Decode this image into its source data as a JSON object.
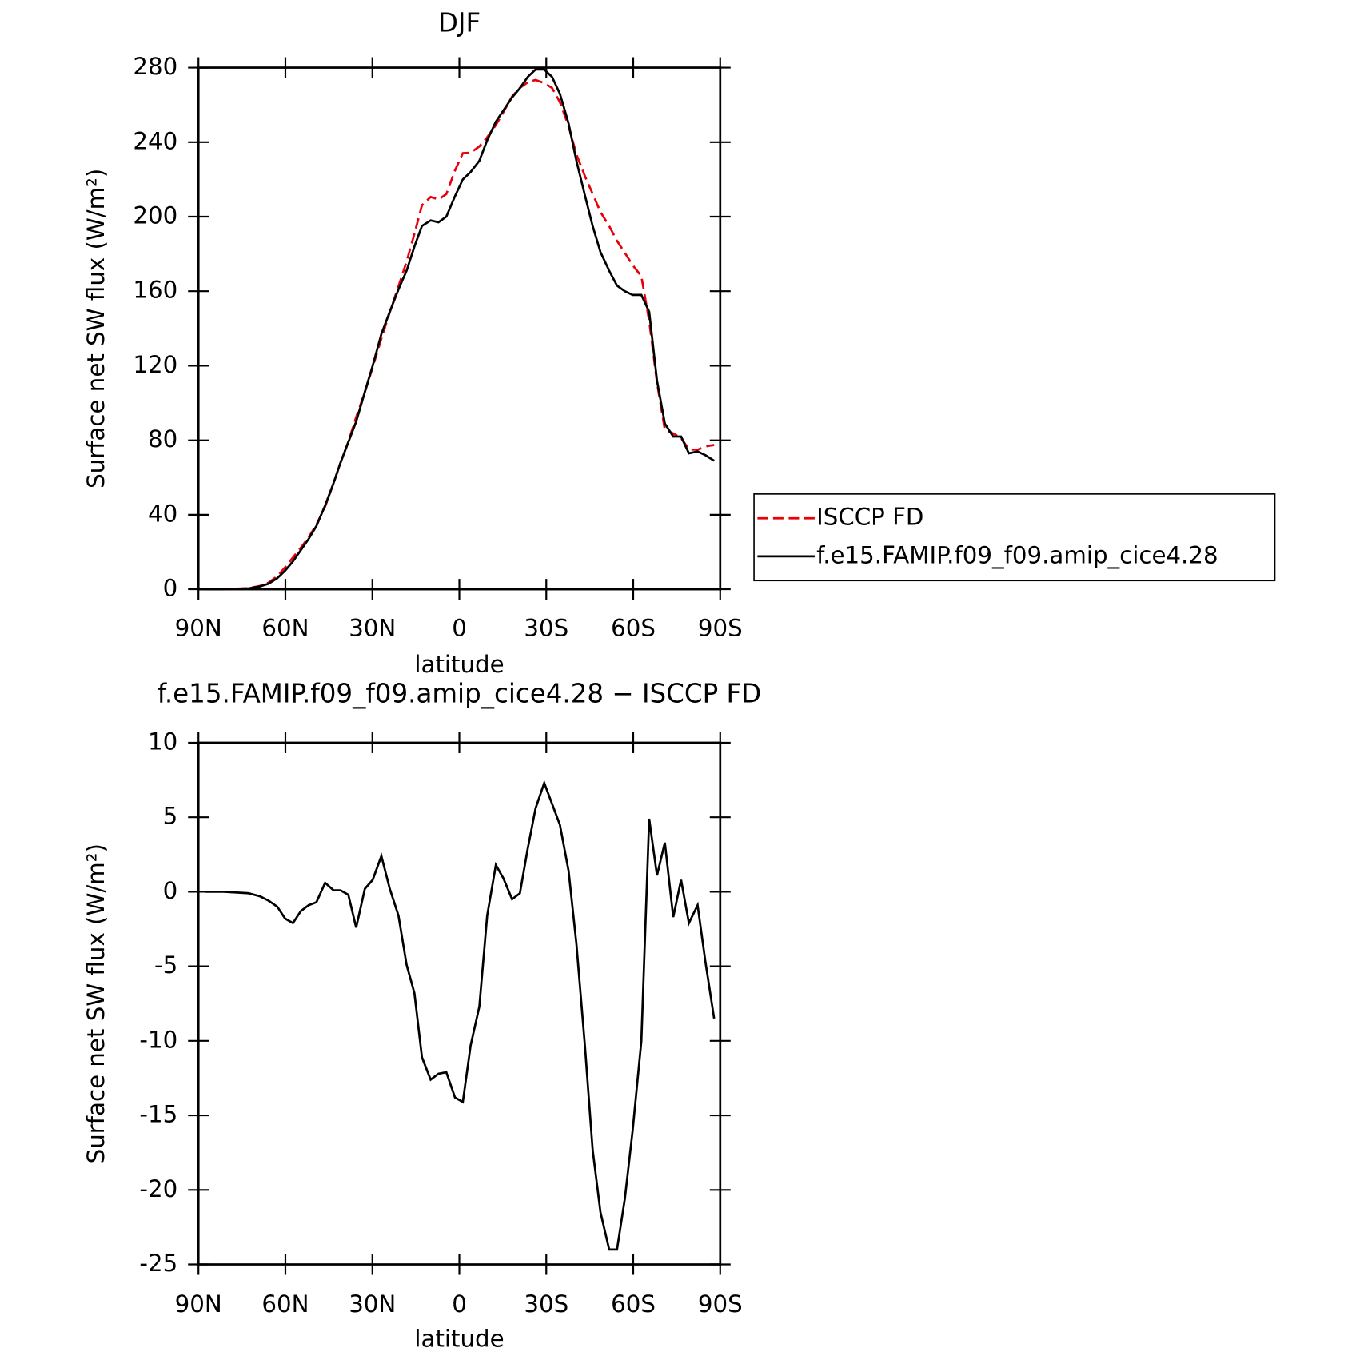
{
  "chart_data": [
    {
      "type": "line",
      "title": "DJF",
      "xlabel": "latitude",
      "ylabel": "Surface net SW flux (W/m²)",
      "xlim": [
        90,
        -90
      ],
      "xticks": [
        {
          "value": 90,
          "label": "90N"
        },
        {
          "value": 60,
          "label": "60N"
        },
        {
          "value": 30,
          "label": "30N"
        },
        0,
        {
          "value": -30,
          "label": "30S"
        },
        {
          "value": -60,
          "label": "60S"
        },
        {
          "value": -90,
          "label": "90S"
        }
      ],
      "ylim": [
        0,
        280
      ],
      "yticks": [
        0,
        40,
        80,
        120,
        160,
        200,
        240,
        280
      ],
      "legend": "right",
      "x": [
        87.6,
        81.3,
        72.7,
        68.8,
        65.8,
        62.8,
        60.1,
        57.4,
        54.7,
        52,
        49.3,
        46.3,
        43.4,
        41,
        38.3,
        35.6,
        32.6,
        29.9,
        26.9,
        24,
        21,
        18.2,
        15.5,
        12.9,
        9.9,
        7.2,
        4.5,
        1.5,
        -1.2,
        -3.9,
        -6.9,
        -9.6,
        -12.6,
        -15.2,
        -18.2,
        -20.9,
        -23.6,
        -26.3,
        -29.3,
        -32,
        -34.7,
        -37.7,
        -40.4,
        -43.4,
        -46,
        -48.7,
        -51.7,
        -54.4,
        -57.1,
        -59.8,
        -62.8,
        -65.5,
        -68.2,
        -70.9,
        -73.8,
        -76.5,
        -79.2,
        -82.2,
        -84.9,
        -87.9
      ],
      "series": [
        {
          "name": "ISCCP FD",
          "color": "#e8000b",
          "line_style": "dashed",
          "values": [
            0,
            0,
            0.6,
            1.8,
            3.6,
            7,
            11.8,
            17.1,
            22.3,
            27.9,
            34.7,
            44.4,
            56.9,
            67.9,
            79.2,
            92.4,
            105.8,
            119.2,
            134.6,
            148.8,
            162.6,
            175.9,
            190.8,
            206.1,
            210.6,
            209.2,
            212.1,
            224.8,
            234.1,
            234.3,
            237.7,
            242.6,
            249.2,
            256.1,
            264.5,
            269.1,
            272.1,
            273.4,
            271.7,
            269.1,
            261.5,
            248.6,
            233.5,
            221.5,
            212.3,
            202.5,
            195,
            187,
            180.6,
            174,
            168,
            144.1,
            110.9,
            85.7,
            83.7,
            81.2,
            75.1,
            74.9,
            76.7,
            77.5
          ]
        },
        {
          "name": "f.e15.FAMIP.f09_f09.amip_cice4.28",
          "color": "#000000",
          "line_style": "solid",
          "values": [
            0,
            0,
            0.5,
            1.5,
            3,
            6,
            10,
            15,
            21,
            27,
            34,
            45,
            57,
            68,
            79,
            90,
            106,
            120,
            137,
            149,
            161,
            171,
            184,
            195,
            198,
            197,
            200,
            211,
            220,
            224,
            230,
            241,
            251,
            257,
            264,
            269,
            275,
            279,
            279,
            275,
            266,
            250,
            230,
            211,
            195,
            181,
            171,
            163,
            160,
            158,
            158,
            149,
            112,
            89,
            82,
            82,
            73,
            74,
            72,
            69
          ]
        }
      ]
    },
    {
      "type": "line",
      "title": "f.e15.FAMIP.f09_f09.amip_cice4.28 − ISCCP FD",
      "xlabel": "latitude",
      "ylabel": "Surface net SW flux (W/m²)",
      "xlim": [
        90,
        -90
      ],
      "xticks": [
        {
          "value": 90,
          "label": "90N"
        },
        {
          "value": 60,
          "label": "60N"
        },
        {
          "value": 30,
          "label": "30N"
        },
        0,
        {
          "value": -30,
          "label": "30S"
        },
        {
          "value": -60,
          "label": "60S"
        },
        {
          "value": -90,
          "label": "90S"
        }
      ],
      "ylim": [
        -25,
        10
      ],
      "yticks": [
        -25,
        -20,
        -15,
        -10,
        -5,
        0,
        5,
        10
      ],
      "x": [
        87.6,
        81.3,
        72.7,
        68.8,
        65.8,
        62.8,
        60.1,
        57.4,
        54.7,
        52,
        49.3,
        46.3,
        43.4,
        41,
        38.3,
        35.6,
        32.6,
        29.9,
        26.9,
        24,
        21,
        18.2,
        15.5,
        12.9,
        9.9,
        7.2,
        4.5,
        1.5,
        -1.2,
        -3.9,
        -6.9,
        -9.6,
        -12.6,
        -15.2,
        -18.2,
        -20.9,
        -23.6,
        -26.3,
        -29.3,
        -32,
        -34.7,
        -37.7,
        -40.4,
        -43.4,
        -46,
        -48.7,
        -51.7,
        -54.4,
        -57.1,
        -59.8,
        -62.8,
        -65.5,
        -68.2,
        -70.9,
        -73.8,
        -76.5,
        -79.2,
        -82.2,
        -84.9,
        -87.9
      ],
      "series": [
        {
          "color": "#000000",
          "line_style": "solid",
          "values": [
            0,
            0,
            -0.1,
            -0.3,
            -0.6,
            -1,
            -1.8,
            -2.1,
            -1.3,
            -0.9,
            -0.7,
            0.6,
            0.1,
            0.1,
            -0.2,
            -2.4,
            0.2,
            0.8,
            2.4,
            0.2,
            -1.6,
            -4.9,
            -6.8,
            -11.1,
            -12.6,
            -12.2,
            -12.1,
            -13.8,
            -14.1,
            -10.3,
            -7.7,
            -1.6,
            1.8,
            0.9,
            -0.5,
            -0.1,
            2.9,
            5.6,
            7.3,
            5.9,
            4.5,
            1.4,
            -3.5,
            -10.5,
            -17.3,
            -21.5,
            -24,
            -24,
            -20.6,
            -16,
            -10,
            4.9,
            1.1,
            3.3,
            -1.7,
            0.8,
            -2.1,
            -0.9,
            -4.7,
            -8.5
          ]
        }
      ]
    }
  ]
}
